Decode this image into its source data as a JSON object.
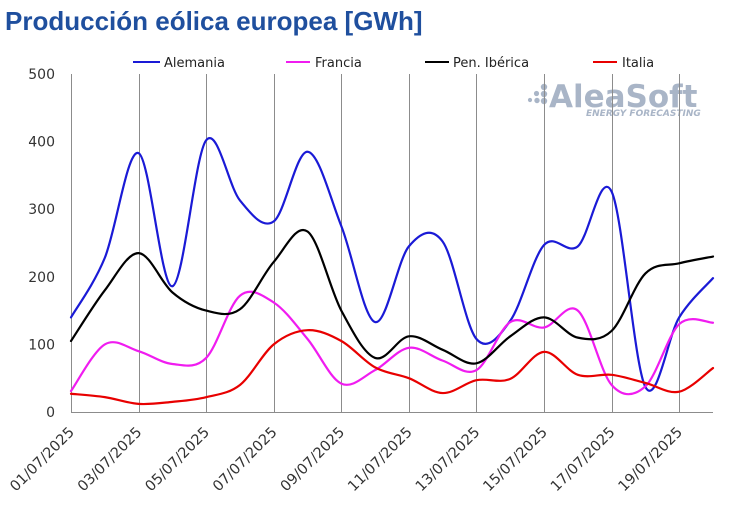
{
  "chart_data": {
    "type": "line",
    "title": "Producción eólica europea [GWh]",
    "x": [
      "01/07/2025",
      "02/07/2025",
      "03/07/2025",
      "04/07/2025",
      "05/07/2025",
      "06/07/2025",
      "07/07/2025",
      "08/07/2025",
      "09/07/2025",
      "10/07/2025",
      "11/07/2025",
      "12/07/2025",
      "13/07/2025",
      "14/07/2025",
      "15/07/2025",
      "16/07/2025",
      "17/07/2025",
      "18/07/2025",
      "19/07/2025",
      "20/07/2025"
    ],
    "x_tick_labels": [
      "01/07/2025",
      "03/07/2025",
      "05/07/2025",
      "07/07/2025",
      "09/07/2025",
      "11/07/2025",
      "13/07/2025",
      "15/07/2025",
      "17/07/2025",
      "19/07/2025"
    ],
    "y_ticks": [
      0,
      100,
      200,
      300,
      400,
      500
    ],
    "ylim": [
      0,
      500
    ],
    "grid": "vertical",
    "legend": "top",
    "line_style": "smoothed",
    "series": [
      {
        "name": "Alemania",
        "color": "#1a1ad6",
        "values": [
          140,
          228,
          383,
          186,
          402,
          313,
          282,
          385,
          275,
          133,
          245,
          252,
          108,
          135,
          247,
          245,
          326,
          37,
          140,
          198
        ]
      },
      {
        "name": "Francia",
        "color": "#f01cf0",
        "values": [
          31,
          100,
          90,
          71,
          80,
          172,
          162,
          108,
          42,
          62,
          95,
          76,
          62,
          133,
          125,
          150,
          40,
          38,
          130,
          132
        ]
      },
      {
        "name": "Pen. Ibérica",
        "color": "#000000",
        "values": [
          105,
          180,
          235,
          177,
          150,
          152,
          222,
          267,
          150,
          80,
          112,
          92,
          72,
          112,
          140,
          110,
          120,
          205,
          220,
          230
        ]
      },
      {
        "name": "Italia",
        "color": "#e80000",
        "values": [
          27,
          22,
          12,
          15,
          22,
          40,
          100,
          121,
          105,
          66,
          50,
          28,
          47,
          49,
          89,
          55,
          55,
          43,
          30,
          65
        ]
      }
    ]
  },
  "watermark": {
    "brand": "AleaSoft",
    "tagline": "ENERGY FORECASTING",
    "color": "#a9b5c7"
  },
  "colors": {
    "title": "#1f4f9e",
    "axis_text": "#333333",
    "legend_text": "#222222",
    "grid": "#8c8c8c"
  }
}
